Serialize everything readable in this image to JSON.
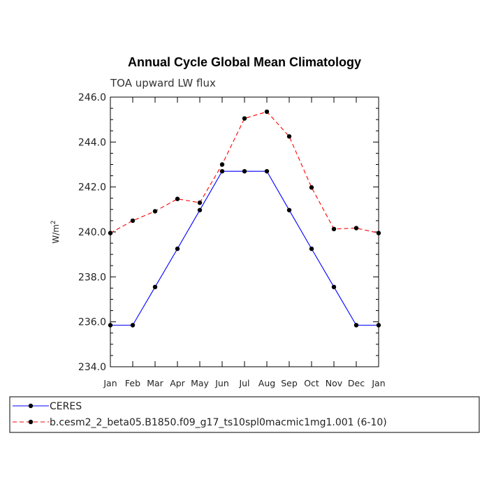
{
  "chart_data": {
    "type": "line",
    "title": "Annual Cycle Global Mean Climatology",
    "subtitle": "TOA upward LW flux",
    "xlabel": "",
    "ylabel": "W/m",
    "ylabel_superscript": "2",
    "ylim": [
      234.0,
      246.0
    ],
    "yticks": [
      "234.0",
      "236.0",
      "238.0",
      "240.0",
      "242.0",
      "244.0",
      "246.0"
    ],
    "categories": [
      "Jan",
      "Feb",
      "Mar",
      "Apr",
      "May",
      "Jun",
      "Jul",
      "Aug",
      "Sep",
      "Oct",
      "Nov",
      "Dec",
      "Jan"
    ],
    "series": [
      {
        "name": "CERES",
        "color": "#0000ff",
        "dash": "solid",
        "values": [
          235.85,
          235.85,
          237.55,
          239.25,
          240.97,
          242.7,
          242.7,
          242.7,
          240.97,
          239.25,
          237.55,
          235.85,
          235.85
        ]
      },
      {
        "name": "b.cesm2_2_beta05.B1850.f09_g17_ts10spl0macmic1mg1.001 (6-10)",
        "color": "#ff0000",
        "dash": "dashed",
        "values": [
          239.95,
          240.5,
          240.92,
          241.47,
          241.3,
          243.0,
          245.05,
          245.35,
          244.25,
          241.98,
          240.13,
          240.17,
          239.95
        ]
      }
    ],
    "legend_position": "bottom"
  }
}
